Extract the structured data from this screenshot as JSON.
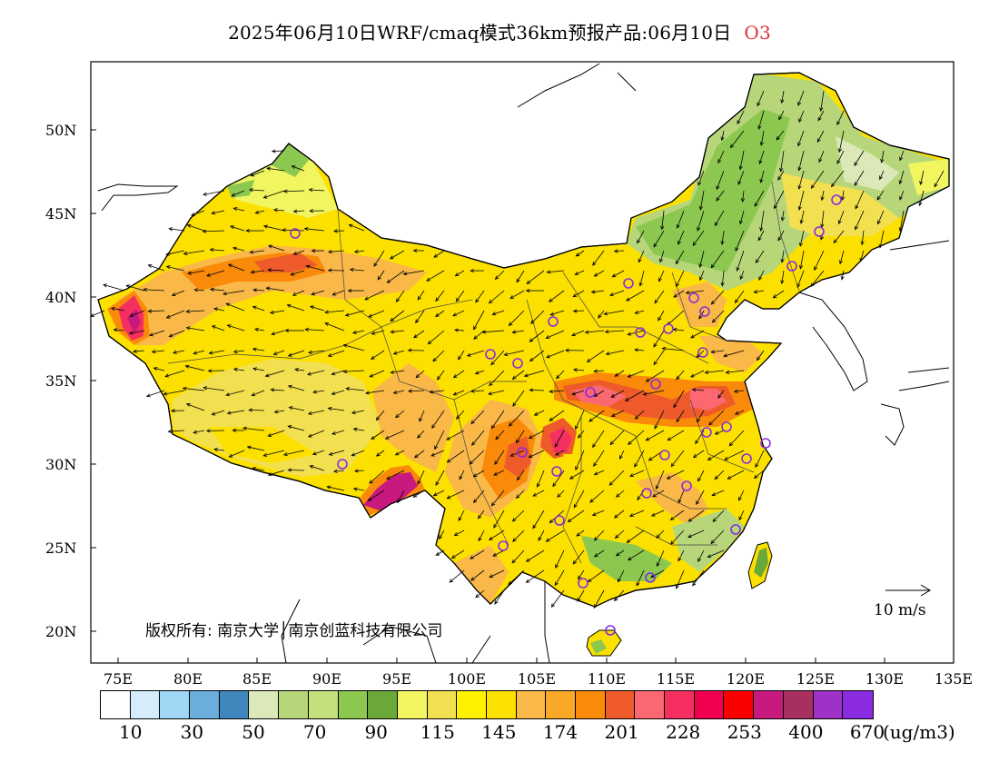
{
  "header": {
    "title": "2025年06月10日WRF/cmaq模式36km预报产品:06月10日",
    "species": "O3"
  },
  "axes": {
    "y_labels": [
      "50N",
      "45N",
      "40N",
      "35N",
      "30N",
      "25N",
      "20N"
    ],
    "x_labels": [
      "75E",
      "80E",
      "85E",
      "90E",
      "95E",
      "100E",
      "105E",
      "110E",
      "115E",
      "120E",
      "125E",
      "130E",
      "135E"
    ]
  },
  "map": {
    "copyright": "版权所有: 南京大学│南京创蓝科技有限公司",
    "wind_reference": "10 m/s"
  },
  "colorbar": {
    "colors": [
      "#ffffff",
      "#d4ecfb",
      "#9fd6f4",
      "#6aaedc",
      "#3f87bd",
      "#dbe8b8",
      "#b7d67a",
      "#c3e07d",
      "#8cc84f",
      "#6aa83a",
      "#f0f560",
      "#f2e050",
      "#fff200",
      "#fce000",
      "#f9b848",
      "#f9a828",
      "#f98a0a",
      "#ee5a2a",
      "#fb6872",
      "#f53060",
      "#f0004e",
      "#fa0000",
      "#c8197e",
      "#a83060",
      "#9e32c8",
      "#8a2be2"
    ],
    "labels": [
      "10",
      "30",
      "50",
      "70",
      "90",
      "115",
      "145",
      "174",
      "201",
      "228",
      "253",
      "400",
      "670"
    ],
    "unit": "(ug/m3)"
  },
  "legend_colors": {
    "ocean": "#ffffff",
    "border": "#000000",
    "station_marker": "#8a2be2"
  }
}
